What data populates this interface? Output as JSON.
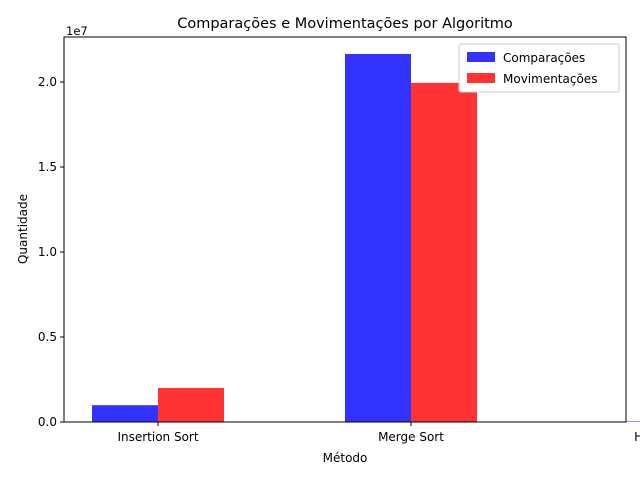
{
  "chart_data": {
    "type": "bar",
    "title": "Comparações e Movimentações por Algoritmo",
    "xlabel": "Método",
    "ylabel": "Quantidade",
    "scale_label": "1e7",
    "categories": [
      "Insertion Sort",
      "Merge Sort",
      "Heap Sort"
    ],
    "series": [
      {
        "name": "Comparações",
        "color": "#3333ff",
        "values": [
          990000,
          21650000,
          30000
        ]
      },
      {
        "name": "Movimentações",
        "color": "#ff3333",
        "values": [
          2000000,
          19950000,
          30000
        ]
      }
    ],
    "ylim": [
      0,
      22650000
    ],
    "yticks": [
      {
        "value": 0,
        "label": "0.0"
      },
      {
        "value": 5000000,
        "label": "0.5"
      },
      {
        "value": 10000000,
        "label": "1.0"
      },
      {
        "value": 15000000,
        "label": "1.5"
      },
      {
        "value": 20000000,
        "label": "2.0"
      }
    ],
    "grid": false,
    "legend_position": "top-right"
  }
}
